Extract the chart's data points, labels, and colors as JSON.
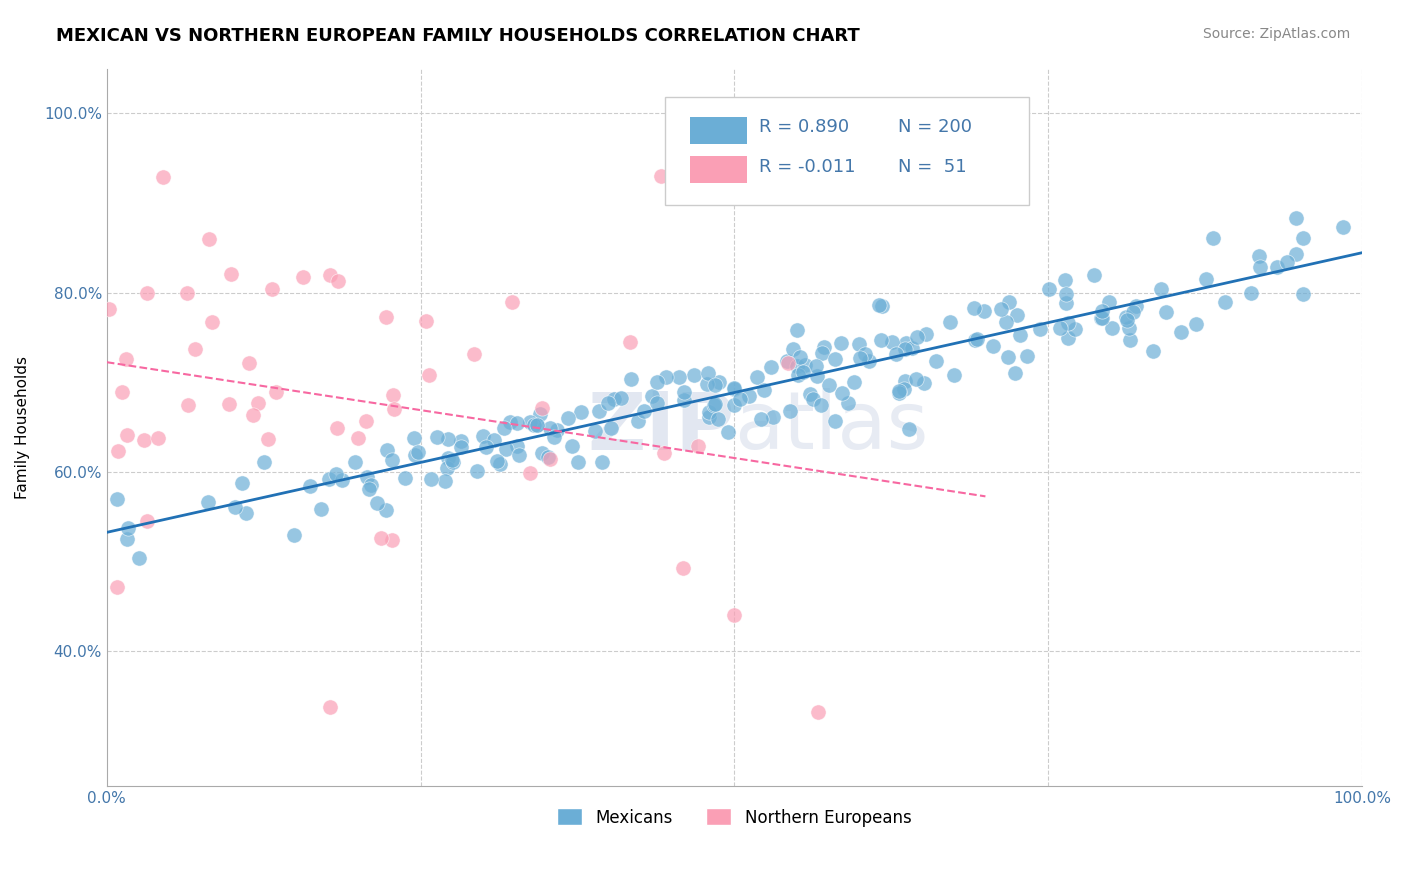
{
  "title": "MEXICAN VS NORTHERN EUROPEAN FAMILY HOUSEHOLDS CORRELATION CHART",
  "source_text": "Source: ZipAtlas.com",
  "ylabel": "Family Households",
  "mexicans_label": "Mexicans",
  "northern_europeans_label": "Northern Europeans",
  "blue_color": "#6baed6",
  "pink_color": "#fa9fb5",
  "blue_line_color": "#2171b5",
  "pink_line_color": "#f768a1",
  "background_color": "#ffffff",
  "grid_color": "#cccccc",
  "label_color": "#4477aa",
  "blue_R": 0.89,
  "pink_R": -0.011,
  "blue_N": 200,
  "pink_N": 51,
  "x_min": 0.0,
  "x_max": 1.0,
  "y_min": 0.25,
  "y_max": 1.05,
  "title_fontsize": 13,
  "axis_label_fontsize": 11,
  "tick_fontsize": 11,
  "legend_fontsize": 13,
  "source_fontsize": 10
}
